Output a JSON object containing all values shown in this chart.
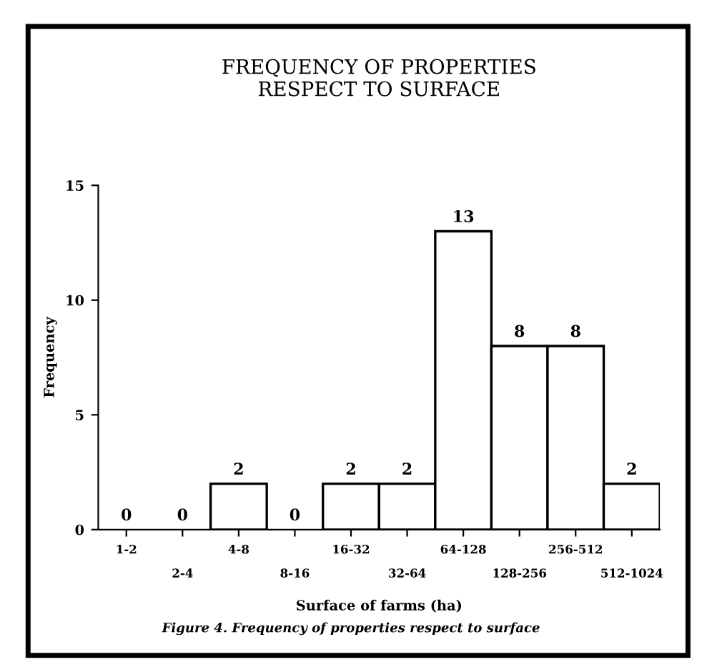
{
  "chart_data": {
    "type": "bar",
    "title": "FREQUENCY OF PROPERTIES\nRESPECT TO SURFACE",
    "xlabel": "Surface of farms (ha)",
    "ylabel": "Frequency",
    "categories": [
      "1-2",
      "2-4",
      "4-8",
      "8-16",
      "16-32",
      "32-64",
      "64-128",
      "128-256",
      "256-512",
      "512-1024"
    ],
    "values": [
      0,
      0,
      2,
      0,
      2,
      2,
      13,
      8,
      8,
      2
    ],
    "color": "#ffffff",
    "ylim": [
      0,
      15
    ],
    "yticks": [
      0,
      5,
      10,
      15
    ],
    "data_labels": true,
    "grid": false,
    "annotations": [
      "Figure 4. Frequency of properties respect to surface"
    ]
  }
}
